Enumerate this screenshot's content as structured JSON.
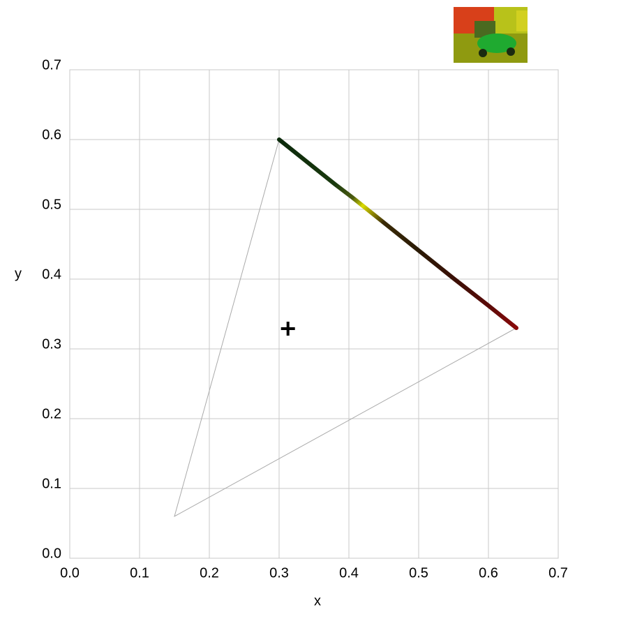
{
  "chart_data": {
    "type": "scatter",
    "xlabel": "x",
    "ylabel": "y",
    "xlim": [
      0,
      0.7
    ],
    "ylim": [
      0,
      0.7
    ],
    "xticks": [
      {
        "value": 0,
        "label": "0.0"
      },
      0.1,
      0.2,
      0.3,
      0.4,
      0.5,
      0.6,
      0.7
    ],
    "yticks": [
      {
        "value": 0,
        "label": "0.0"
      },
      0.1,
      0.2,
      0.3,
      0.4,
      0.5,
      0.6,
      0.7
    ],
    "grid": true,
    "gamut": {
      "x": [
        0.64,
        0.3,
        0.15
      ],
      "y": [
        0.33,
        0.6,
        0.06
      ],
      "color": "#aaaaaa"
    },
    "white_point": {
      "x": 0.3127,
      "y": 0.329,
      "color": "#000000"
    },
    "series": [
      {
        "x": [
          0.3,
          0.34,
          0.38,
          0.405,
          0.42,
          0.45,
          0.5,
          0.55,
          0.6,
          0.64
        ],
        "values": [
          0.6,
          0.568,
          0.536,
          0.517,
          0.505,
          0.481,
          0.441,
          0.401,
          0.362,
          0.33
        ],
        "colors": [
          "#0b2a0b",
          "#12300c",
          "#1a3a0e",
          "#4a5a10",
          "#d8d800",
          "#3a2a06",
          "#2a1a05",
          "#3a1006",
          "#5a0a08",
          "#8a0a0a"
        ]
      }
    ]
  }
}
